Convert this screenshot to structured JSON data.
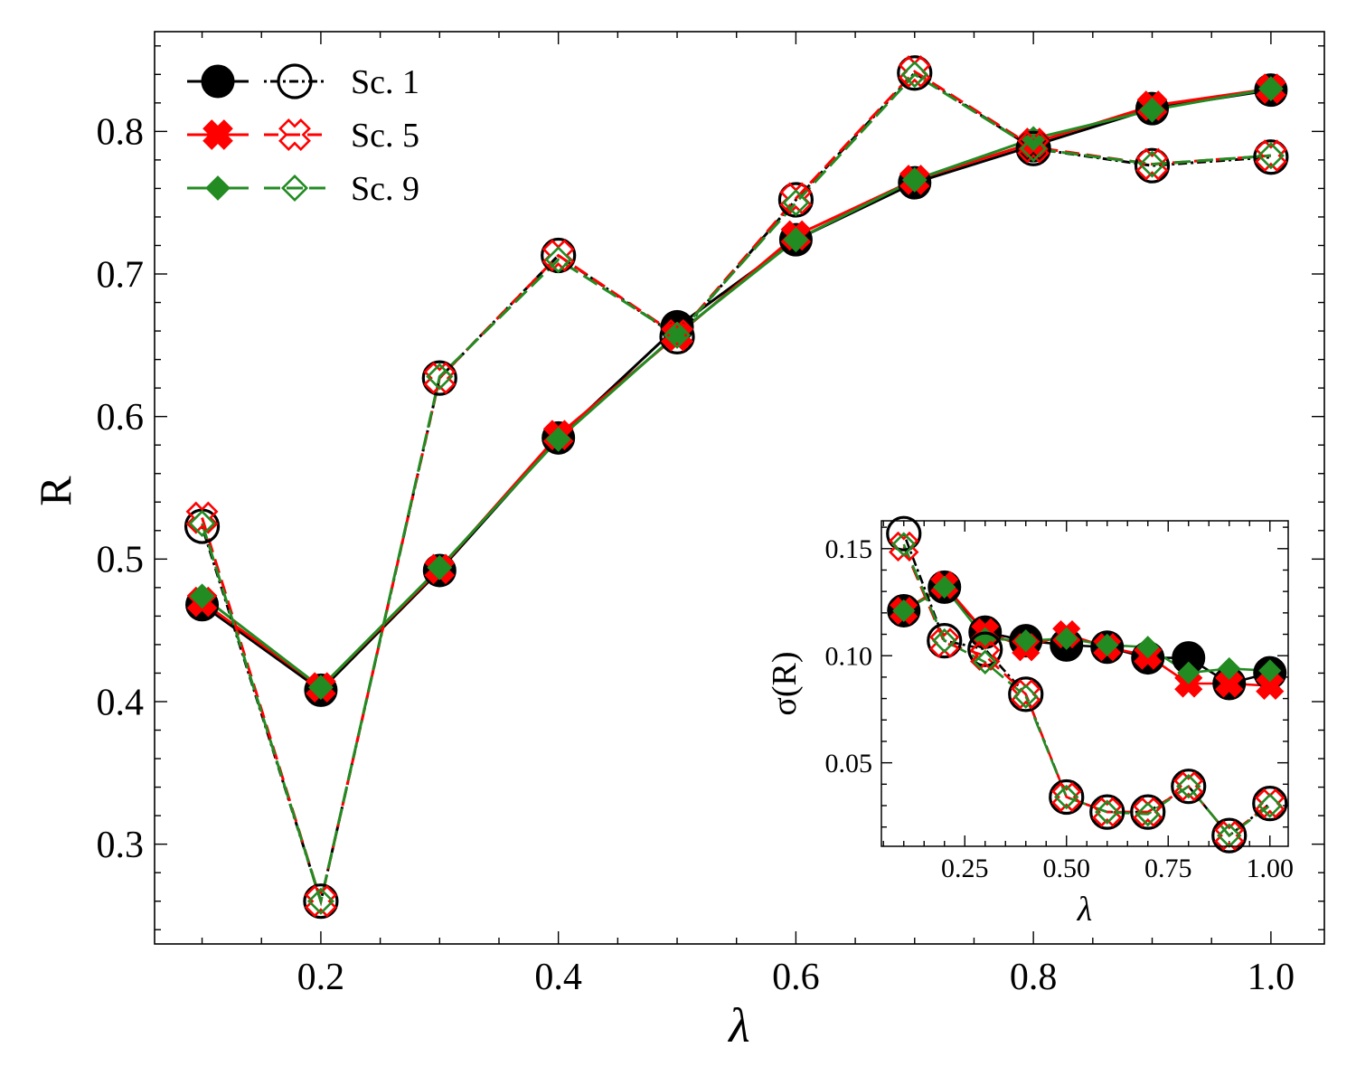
{
  "chart_data": [
    {
      "type": "line",
      "panel": "main",
      "xlabel": "λ",
      "ylabel": "R",
      "xlim": [
        0.06,
        1.045
      ],
      "ylim": [
        0.23,
        0.87
      ],
      "xticks": [
        0.2,
        0.4,
        0.6,
        0.8,
        1.0
      ],
      "xtick_labels": [
        "0.2",
        "0.4",
        "0.6",
        "0.8",
        "1.0"
      ],
      "yticks": [
        0.3,
        0.4,
        0.5,
        0.6,
        0.7,
        0.8
      ],
      "ytick_labels": [
        "0.3",
        "0.4",
        "0.5",
        "0.6",
        "0.7",
        "0.8"
      ],
      "x": [
        0.1,
        0.2,
        0.3,
        0.4,
        0.5,
        0.6,
        0.7,
        0.8,
        0.9,
        1.0
      ],
      "legend_position": "top-left",
      "series": [
        {
          "name": "Sc. 1",
          "variant": "filled",
          "color": "#000000",
          "marker": "circle",
          "values": [
            0.468,
            0.408,
            0.492,
            0.585,
            0.663,
            0.724,
            0.764,
            0.79,
            0.816,
            0.829
          ]
        },
        {
          "name": "Sc. 1",
          "variant": "open",
          "color": "#000000",
          "marker": "circle",
          "values": [
            0.523,
            0.26,
            0.627,
            0.713,
            0.656,
            0.752,
            0.841,
            0.788,
            0.776,
            0.782
          ]
        },
        {
          "name": "Sc. 5",
          "variant": "filled",
          "color": "#ff0000",
          "marker": "x",
          "values": [
            0.47,
            0.41,
            0.493,
            0.587,
            0.657,
            0.727,
            0.766,
            0.792,
            0.818,
            0.83
          ]
        },
        {
          "name": "Sc. 5",
          "variant": "open",
          "color": "#ff0000",
          "marker": "x",
          "values": [
            0.529,
            0.26,
            0.627,
            0.713,
            0.657,
            0.753,
            0.842,
            0.789,
            0.777,
            0.783
          ]
        },
        {
          "name": "Sc. 9",
          "variant": "filled",
          "color": "#228b22",
          "marker": "diamond",
          "values": [
            0.474,
            0.41,
            0.494,
            0.584,
            0.658,
            0.724,
            0.766,
            0.795,
            0.815,
            0.83
          ]
        },
        {
          "name": "Sc. 9",
          "variant": "open",
          "color": "#228b22",
          "marker": "diamond",
          "values": [
            0.525,
            0.26,
            0.628,
            0.71,
            0.657,
            0.75,
            0.84,
            0.788,
            0.777,
            0.783
          ]
        }
      ]
    },
    {
      "type": "line",
      "panel": "inset",
      "xlabel": "λ",
      "ylabel": "σ(R)",
      "xlim": [
        0.045,
        1.045
      ],
      "ylim": [
        0.011,
        0.163
      ],
      "xticks": [
        0.25,
        0.5,
        0.75,
        1.0
      ],
      "xtick_labels": [
        "0.25",
        "0.50",
        "0.75",
        "1.00"
      ],
      "yticks": [
        0.05,
        0.1,
        0.15
      ],
      "ytick_labels": [
        "0.05",
        "0.10",
        "0.15"
      ],
      "series": [
        {
          "name": "Sc. 1",
          "variant": "filled",
          "color": "#000000",
          "marker": "circle",
          "x": [
            0.1,
            0.2,
            0.3,
            0.4,
            0.5,
            0.6,
            0.7,
            0.8,
            0.9,
            1.0
          ],
          "values": [
            0.121,
            0.132,
            0.111,
            0.107,
            0.105,
            0.104,
            0.099,
            0.099,
            0.087,
            0.092
          ]
        },
        {
          "name": "Sc. 1",
          "variant": "open",
          "color": "#000000",
          "marker": "circle",
          "x": [
            0.1,
            0.2,
            0.3,
            0.4,
            0.5,
            0.6,
            0.7,
            0.8,
            0.9,
            1.0
          ],
          "values": [
            0.157,
            0.107,
            0.103,
            0.082,
            0.034,
            0.027,
            0.027,
            0.039,
            0.016,
            0.031
          ]
        },
        {
          "name": "Sc. 5",
          "variant": "filled",
          "color": "#ff0000",
          "marker": "x",
          "x": [
            0.1,
            0.2,
            0.3,
            0.4,
            0.5,
            0.6,
            0.7,
            0.8,
            0.9,
            1.0
          ],
          "values": [
            0.121,
            0.133,
            0.111,
            0.104,
            0.11,
            0.104,
            0.1,
            0.087,
            0.087,
            0.086
          ]
        },
        {
          "name": "Sc. 5",
          "variant": "open",
          "color": "#ff0000",
          "marker": "x",
          "x": [
            0.1,
            0.2,
            0.3,
            0.4,
            0.5,
            0.6,
            0.7,
            0.8,
            0.9,
            1.0
          ],
          "values": [
            0.151,
            0.106,
            0.1,
            0.082,
            0.034,
            0.027,
            0.027,
            0.039,
            0.016,
            0.031
          ]
        },
        {
          "name": "Sc. 9",
          "variant": "filled",
          "color": "#228b22",
          "marker": "diamond",
          "x": [
            0.1,
            0.2,
            0.3,
            0.4,
            0.5,
            0.6,
            0.7,
            0.8,
            0.9,
            1.0
          ],
          "values": [
            0.121,
            0.132,
            0.108,
            0.107,
            0.108,
            0.105,
            0.104,
            0.092,
            0.094,
            0.093
          ]
        },
        {
          "name": "Sc. 9",
          "variant": "open",
          "color": "#228b22",
          "marker": "diamond",
          "x": [
            0.1,
            0.2,
            0.3,
            0.4,
            0.5,
            0.6,
            0.7,
            0.8,
            0.9,
            1.0
          ],
          "values": [
            0.152,
            0.107,
            0.097,
            0.081,
            0.034,
            0.027,
            0.026,
            0.039,
            0.016,
            0.03
          ]
        }
      ]
    }
  ]
}
